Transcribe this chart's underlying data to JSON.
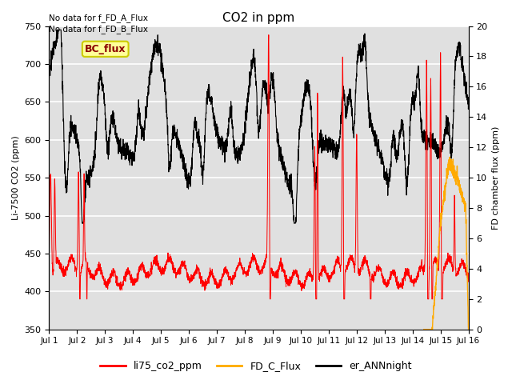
{
  "title": "CO2 in ppm",
  "ylabel_left": "Li-7500 CO2 (ppm)",
  "ylabel_right": "FD chamber flux (ppm)",
  "ylim_left": [
    350,
    750
  ],
  "ylim_right": [
    0,
    20
  ],
  "yticks_left": [
    350,
    400,
    450,
    500,
    550,
    600,
    650,
    700,
    750
  ],
  "yticks_right": [
    0,
    2,
    4,
    6,
    8,
    10,
    12,
    14,
    16,
    18,
    20
  ],
  "xlabel_ticks": [
    "Jul 1",
    "Jul 2",
    "Jul 3",
    "Jul 4",
    "Jul 5",
    "Jul 6",
    "Jul 7",
    "Jul 8",
    "Jul 9",
    "Jul 10",
    "Jul 11",
    "Jul 12",
    "Jul 13",
    "Jul 14",
    "Jul 15",
    "Jul 16"
  ],
  "text_no_data_1": "No data for f_FD_A_Flux",
  "text_no_data_2": "No data for f_FD_B_Flux",
  "bc_flux_label": "BC_flux",
  "legend_entries": [
    "li75_co2_ppm",
    "FD_C_Flux",
    "er_ANNnight"
  ],
  "legend_colors": [
    "#ff0000",
    "#ffaa00",
    "#000000"
  ],
  "color_red": "#ff0000",
  "color_orange": "#ffaa00",
  "color_black": "#000000",
  "bg_color": "#e0e0e0",
  "grid_color": "#ffffff",
  "figsize": [
    6.4,
    4.8
  ],
  "dpi": 100
}
